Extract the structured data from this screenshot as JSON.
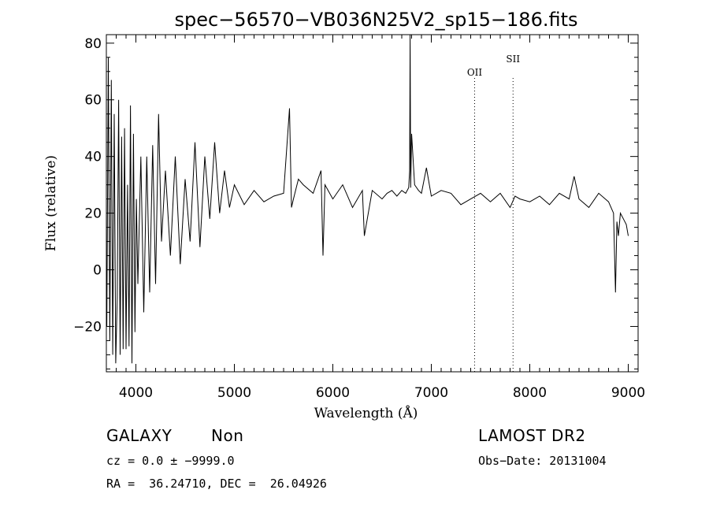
{
  "chart_data": {
    "type": "line",
    "title": "spec−56570−VB036N25V2_sp15−186.fits",
    "xlabel": "Wavelength (Å)",
    "ylabel": "Flux (relative)",
    "xlim": [
      3700,
      9100
    ],
    "ylim": [
      -36,
      83
    ],
    "x_ticks": [
      4000,
      5000,
      6000,
      7000,
      8000,
      9000
    ],
    "x_tick_labels": [
      "4000",
      "5000",
      "6000",
      "7000",
      "8000",
      "9000"
    ],
    "y_ticks": [
      -20,
      0,
      20,
      40,
      60,
      80
    ],
    "y_tick_labels": [
      "−20",
      "0",
      "20",
      "40",
      "60",
      "80"
    ],
    "grid": false,
    "line_color": "#000000",
    "series": [
      {
        "x": [
          3705,
          3720,
          3735,
          3750,
          3765,
          3780,
          3795,
          3810,
          3825,
          3840,
          3855,
          3870,
          3885,
          3900,
          3915,
          3930,
          3945,
          3960,
          3975,
          3990,
          4005,
          4020,
          4050,
          4080,
          4110,
          4140,
          4170,
          4200,
          4230,
          4260,
          4300,
          4350,
          4400,
          4450,
          4500,
          4550,
          4600,
          4650,
          4700,
          4750,
          4800,
          4850,
          4900,
          4950,
          5000,
          5100,
          5200,
          5300,
          5400,
          5500,
          5560,
          5580,
          5600,
          5650,
          5700,
          5800,
          5880,
          5900,
          5920,
          6000,
          6100,
          6200,
          6300,
          6320,
          6400,
          6500,
          6550,
          6600,
          6650,
          6700,
          6740,
          6770,
          6780,
          6785,
          6790,
          6800,
          6830,
          6870,
          6900,
          6950,
          7000,
          7100,
          7200,
          7300,
          7400,
          7500,
          7600,
          7700,
          7800,
          7850,
          7900,
          8000,
          8100,
          8200,
          8300,
          8400,
          8450,
          8500,
          8600,
          8700,
          8800,
          8850,
          8870,
          8885,
          8900,
          8920,
          8950,
          8980,
          9000
        ],
        "values": [
          -20,
          75,
          -25,
          67,
          -30,
          55,
          -33,
          -10,
          60,
          -30,
          47,
          -28,
          50,
          -28,
          30,
          -27,
          58,
          -33,
          48,
          -22,
          25,
          -5,
          40,
          -15,
          40,
          -8,
          44,
          -5,
          55,
          10,
          35,
          5,
          40,
          2,
          32,
          10,
          45,
          8,
          40,
          18,
          45,
          20,
          35,
          22,
          30,
          23,
          28,
          24,
          26,
          27,
          57,
          22,
          25,
          32,
          30,
          27,
          35,
          5,
          30,
          25,
          30,
          22,
          28,
          12,
          28,
          25,
          27,
          28,
          26,
          28,
          27,
          29,
          35,
          83,
          29,
          48,
          30,
          28,
          27,
          36,
          26,
          28,
          27,
          23,
          25,
          27,
          24,
          27,
          22,
          26,
          25,
          24,
          26,
          23,
          27,
          25,
          33,
          25,
          22,
          27,
          24,
          20,
          -8,
          17,
          12,
          20,
          18,
          16,
          12
        ]
      }
    ],
    "annotations": [
      {
        "label": "OII",
        "x": 7440
      },
      {
        "label": "SII",
        "x": 7830
      }
    ]
  },
  "info": {
    "class": "GALAXY",
    "subclass": "Non",
    "survey": "LAMOST DR2",
    "cz": "cz = 0.0 ± −9999.0",
    "obs_date": "Obs−Date: 20131004",
    "radec": "RA =  36.24710, DEC =  26.04926"
  }
}
